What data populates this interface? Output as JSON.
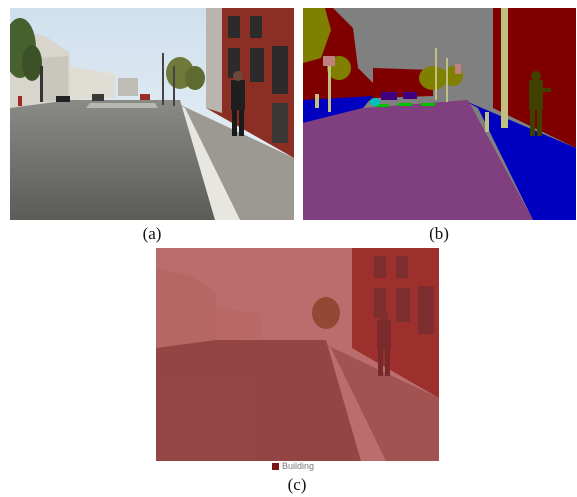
{
  "panels": [
    {
      "id": "a",
      "caption": "(a)"
    },
    {
      "id": "b",
      "caption": "(b)"
    },
    {
      "id": "c",
      "caption": "(c)"
    }
  ],
  "legend": {
    "label": "Building",
    "color": "#7b1616"
  },
  "segmentation_colors": {
    "sky": "#808080",
    "building": "#800000",
    "road": "#804080",
    "sidewalk": "#0000c0",
    "vegetation": "#808000",
    "pole": "#c0c080",
    "sign": "#c08080",
    "lane_marking": "#00c000",
    "car": "#400080",
    "pedestrian": "#404000"
  },
  "overlay_color": "#a02020"
}
